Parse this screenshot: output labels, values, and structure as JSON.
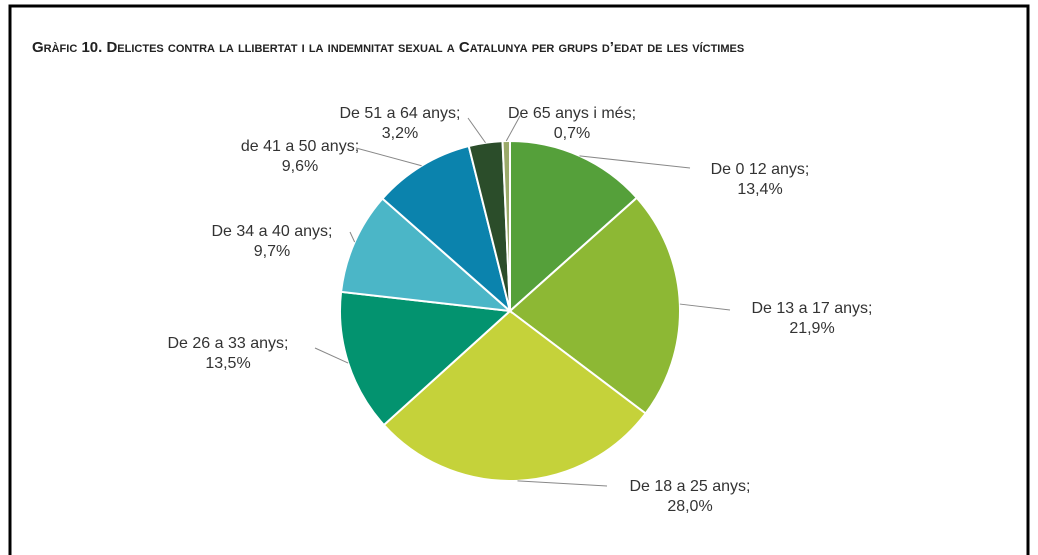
{
  "chart_data": {
    "type": "pie",
    "title": "Gràfic 10. Delictes contra la llibertat i la indemnitat sexual a Catalunya per grups d’edat de les víctimes",
    "categories": [
      "De 0  12 anys",
      "De 13 a  17 anys",
      "De 18 a 25 anys",
      "De 26 a 33 anys",
      "De 34 a 40 anys",
      "de 41 a 50 anys",
      "De 51 a 64 anys",
      "De 65 anys i més"
    ],
    "values": [
      13.4,
      21.9,
      28.0,
      13.5,
      9.7,
      9.6,
      3.2,
      0.7
    ],
    "value_labels": [
      "13,4%",
      "21,9%",
      "28,0%",
      "13,5%",
      "9,7%",
      "9,6%",
      "3,2%",
      "0,7%"
    ],
    "label_separator": ";",
    "colors": [
      "#55a03a",
      "#8db834",
      "#c5d23a",
      "#03936f",
      "#4bb6c7",
      "#0b83ad",
      "#2b4d2a",
      "#9aaa6a"
    ]
  }
}
